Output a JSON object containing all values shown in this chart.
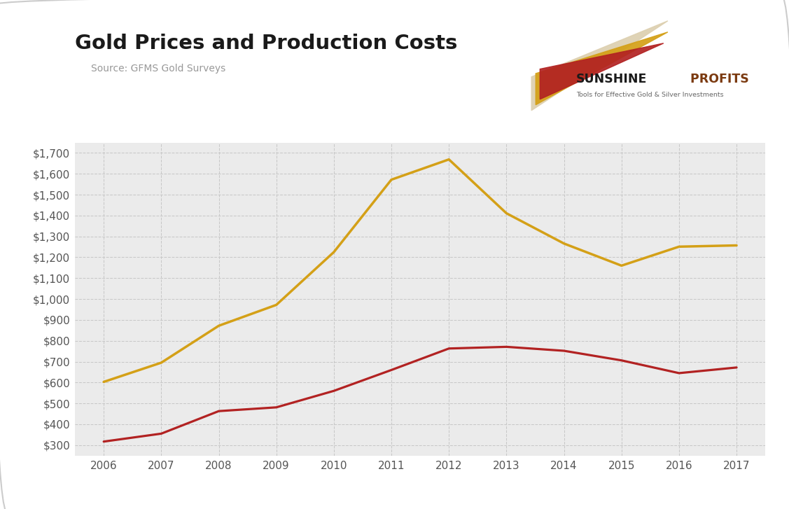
{
  "title": "Gold Prices and Production Costs",
  "source": "Source: GFMS Gold Surveys",
  "years": [
    2006,
    2007,
    2008,
    2009,
    2010,
    2011,
    2012,
    2013,
    2014,
    2015,
    2016,
    2017
  ],
  "gold_prices": [
    603,
    695,
    872,
    972,
    1225,
    1572,
    1669,
    1411,
    1266,
    1160,
    1251,
    1257
  ],
  "cash_costs": [
    317,
    355,
    463,
    481,
    560,
    660,
    763,
    771,
    752,
    706,
    645,
    672
  ],
  "gold_color": "#D4A017",
  "cash_color": "#B22222",
  "background_color": "#EBEBEB",
  "outer_background": "#FFFFFF",
  "grid_color": "#C8C8C8",
  "ylim": [
    250,
    1750
  ],
  "yticks": [
    300,
    400,
    500,
    600,
    700,
    800,
    900,
    1000,
    1100,
    1200,
    1300,
    1400,
    1500,
    1600,
    1700
  ],
  "line_width": 2.5,
  "title_fontsize": 21,
  "source_fontsize": 10,
  "tick_fontsize": 11,
  "logo_sunshine": "SUNSHINE",
  "logo_profits": " PROFITS",
  "logo_tagline": "Tools for Effective Gold & Silver Investments",
  "arrow_colors": [
    "#E8DCC8",
    "#D4A017",
    "#B22222"
  ],
  "arrow_colors_alpha": [
    0.85,
    0.95,
    1.0
  ]
}
